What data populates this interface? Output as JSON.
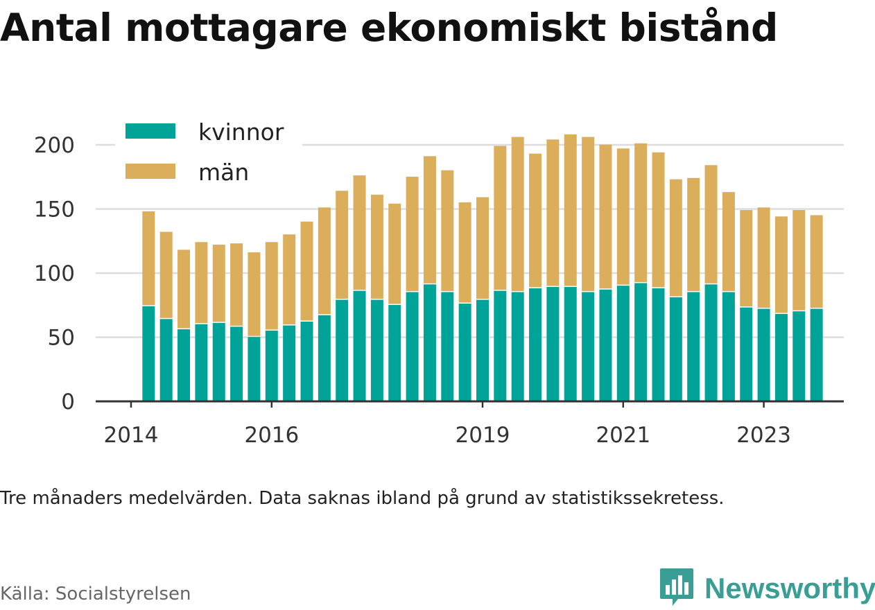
{
  "header": {
    "title": "Antal mottagare ekonomiskt bistånd"
  },
  "footer": {
    "note": "Tre månaders medelvärden. Data saknas ibland på grund av statistikssekretess.",
    "source": "Källa: Socialstyrelsen",
    "brand": "Newsworthy",
    "brand_icon": "bar-chart-logo-icon"
  },
  "colors": {
    "kvinnor": "#00a398",
    "man": "#dbae5c",
    "grid": "#dddddd",
    "axis": "#333333",
    "brand": "#3a9e94"
  },
  "chart_data": {
    "type": "bar",
    "stacked": true,
    "title": "Antal mottagare ekonomiskt bistånd",
    "xlabel": "",
    "ylabel": "",
    "ylim": [
      0,
      215
    ],
    "yticks": [
      0,
      50,
      100,
      150,
      200
    ],
    "xtick_labels": [
      "2014",
      "2016",
      "2019",
      "2021",
      "2023"
    ],
    "grid": true,
    "legend_position": "top-left",
    "categories": [
      "2014-Q2",
      "2014-Q3",
      "2014-Q4",
      "2015-Q1",
      "2015-Q2",
      "2015-Q3",
      "2015-Q4",
      "2016-Q1",
      "2016-Q2",
      "2016-Q3",
      "2016-Q4",
      "2017-Q1",
      "2017-Q2",
      "2017-Q3",
      "2017-Q4",
      "2018-Q1",
      "2018-Q2",
      "2018-Q3",
      "2018-Q4",
      "2019-Q1",
      "2019-Q2",
      "2019-Q3",
      "2019-Q4",
      "2020-Q1",
      "2020-Q2",
      "2020-Q3",
      "2020-Q4",
      "2021-Q1",
      "2021-Q2",
      "2021-Q3",
      "2021-Q4",
      "2022-Q1",
      "2022-Q2",
      "2022-Q3",
      "2022-Q4",
      "2023-Q1",
      "2023-Q2",
      "2023-Q3",
      "2023-Q4"
    ],
    "series": [
      {
        "name": "kvinnor",
        "values": [
          75,
          65,
          57,
          61,
          62,
          59,
          51,
          56,
          60,
          63,
          68,
          80,
          87,
          80,
          76,
          86,
          92,
          86,
          77,
          80,
          87,
          86,
          89,
          90,
          90,
          86,
          88,
          91,
          93,
          89,
          82,
          86,
          92,
          86,
          74,
          73,
          69,
          71,
          73
        ]
      },
      {
        "name": "män",
        "values": [
          74,
          68,
          62,
          64,
          61,
          65,
          66,
          69,
          71,
          78,
          84,
          85,
          90,
          82,
          79,
          90,
          100,
          95,
          79,
          80,
          113,
          121,
          105,
          115,
          119,
          121,
          113,
          107,
          109,
          106,
          92,
          89,
          93,
          78,
          76,
          79,
          76,
          79,
          73
        ]
      }
    ]
  }
}
